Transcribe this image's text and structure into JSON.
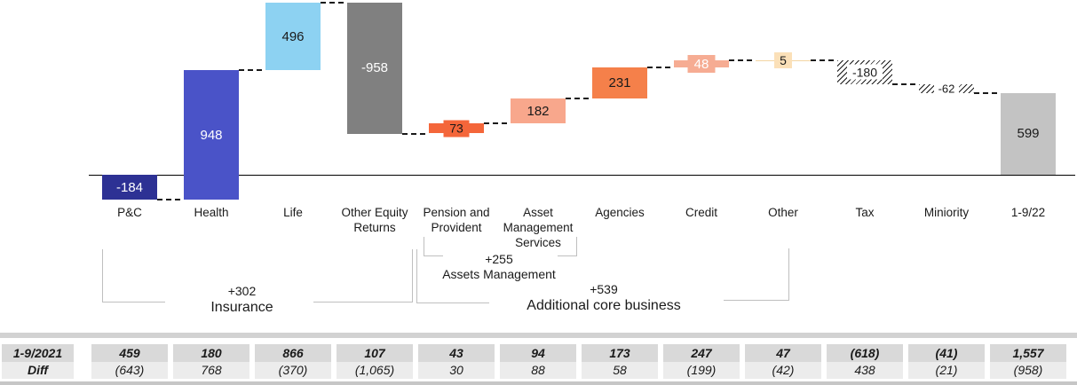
{
  "chart_data": {
    "type": "bar",
    "subtype": "waterfall",
    "title": "",
    "xlabel": "",
    "ylabel": "",
    "axis_range": [
      -184,
      1260
    ],
    "grid": false,
    "categories": [
      "P&C",
      "Health",
      "Life",
      "Other Equity Returns",
      "Pension and Provident",
      "Asset Management Services",
      "Agencies",
      "Credit",
      "Other",
      "Tax",
      "Miniority",
      "1-9/22"
    ],
    "values": [
      -184,
      948,
      496,
      -958,
      73,
      182,
      231,
      48,
      5,
      -180,
      -62,
      599
    ],
    "bars": [
      {
        "label_lines": [
          "P&C"
        ],
        "value": -184,
        "display": "-184",
        "color": "#2d3194",
        "text_color": "#ffffff",
        "label_mode": "inside"
      },
      {
        "label_lines": [
          "Health"
        ],
        "value": 948,
        "display": "948",
        "color": "#4a53c8",
        "text_color": "#ffffff",
        "label_mode": "inside"
      },
      {
        "label_lines": [
          "Life"
        ],
        "value": 496,
        "display": "496",
        "color": "#8dd2f2",
        "text_color": "#1a1a1a",
        "label_mode": "inside"
      },
      {
        "label_lines": [
          "Other Equity",
          "Returns"
        ],
        "value": -958,
        "display": "-958",
        "color": "#808080",
        "text_color": "#ffffff",
        "label_mode": "inside"
      },
      {
        "label_lines": [
          "Pension and",
          "Provident"
        ],
        "value": 73,
        "display": "73",
        "color": "#f4663a",
        "text_color": "#1a1a1a",
        "label_mode": "chip",
        "chip_color": "#f4663a"
      },
      {
        "label_lines": [
          "Asset",
          "Management",
          "Services"
        ],
        "value": 182,
        "display": "182",
        "color": "#f8a78c",
        "text_color": "#1a1a1a",
        "label_mode": "inside"
      },
      {
        "label_lines": [
          "Agencies"
        ],
        "value": 231,
        "display": "231",
        "color": "#f5804a",
        "text_color": "#1a1a1a",
        "label_mode": "inside"
      },
      {
        "label_lines": [
          "Credit"
        ],
        "value": 48,
        "display": "48",
        "color": "#f6ac93",
        "text_color": "#ffffff",
        "label_mode": "chip",
        "chip_color": "#f6ac93"
      },
      {
        "label_lines": [
          "Other"
        ],
        "value": 5,
        "display": "5",
        "color": "#f3d5a2",
        "text_color": "#1a1a1a",
        "label_mode": "chip",
        "chip_color": "#fbe0b8",
        "line_render": true
      },
      {
        "label_lines": [
          "Tax"
        ],
        "value": -180,
        "display": "-180",
        "hatch": true,
        "text_color": "#1a1a1a",
        "label_mode": "chip",
        "chip_color": "#ffffff"
      },
      {
        "label_lines": [
          "Miniority"
        ],
        "value": -62,
        "display": "-62",
        "hatch": true,
        "text_color": "#1a1a1a",
        "label_mode": "chip",
        "chip_color": "#ffffff"
      },
      {
        "label_lines": [
          "1-9/22"
        ],
        "value": 599,
        "display": "599",
        "color": "#c3c3c3",
        "text_color": "#1a1a1a",
        "label_mode": "inside",
        "total": true
      }
    ],
    "groups": [
      {
        "plus": "+302",
        "name": "Insurance"
      },
      {
        "plus": "+255",
        "name": "Assets Management"
      },
      {
        "plus": "+539",
        "name": "Additional core business"
      }
    ],
    "legend": null
  },
  "table": {
    "rows": [
      {
        "label": "1-9/2021",
        "values": [
          "459",
          "180",
          "866",
          "107",
          "43",
          "94",
          "173",
          "247",
          "47",
          "(618)",
          "(41)",
          "1,557"
        ]
      },
      {
        "label": "Diff",
        "values": [
          "(643)",
          "768",
          "(370)",
          "(1,065)",
          "30",
          "88",
          "58",
          "(199)",
          "(42)",
          "438",
          "(21)",
          "(958)"
        ]
      }
    ]
  },
  "colors": {
    "axis": "#000000",
    "connector": "#1a1a1a",
    "bracket": "#bfbfbf",
    "table_row1_bg": "#d9d9d9",
    "table_row2_bg": "#ececec",
    "table_strip_top": "#d2d2d2",
    "table_strip_bottom": "#c6c6c6"
  }
}
